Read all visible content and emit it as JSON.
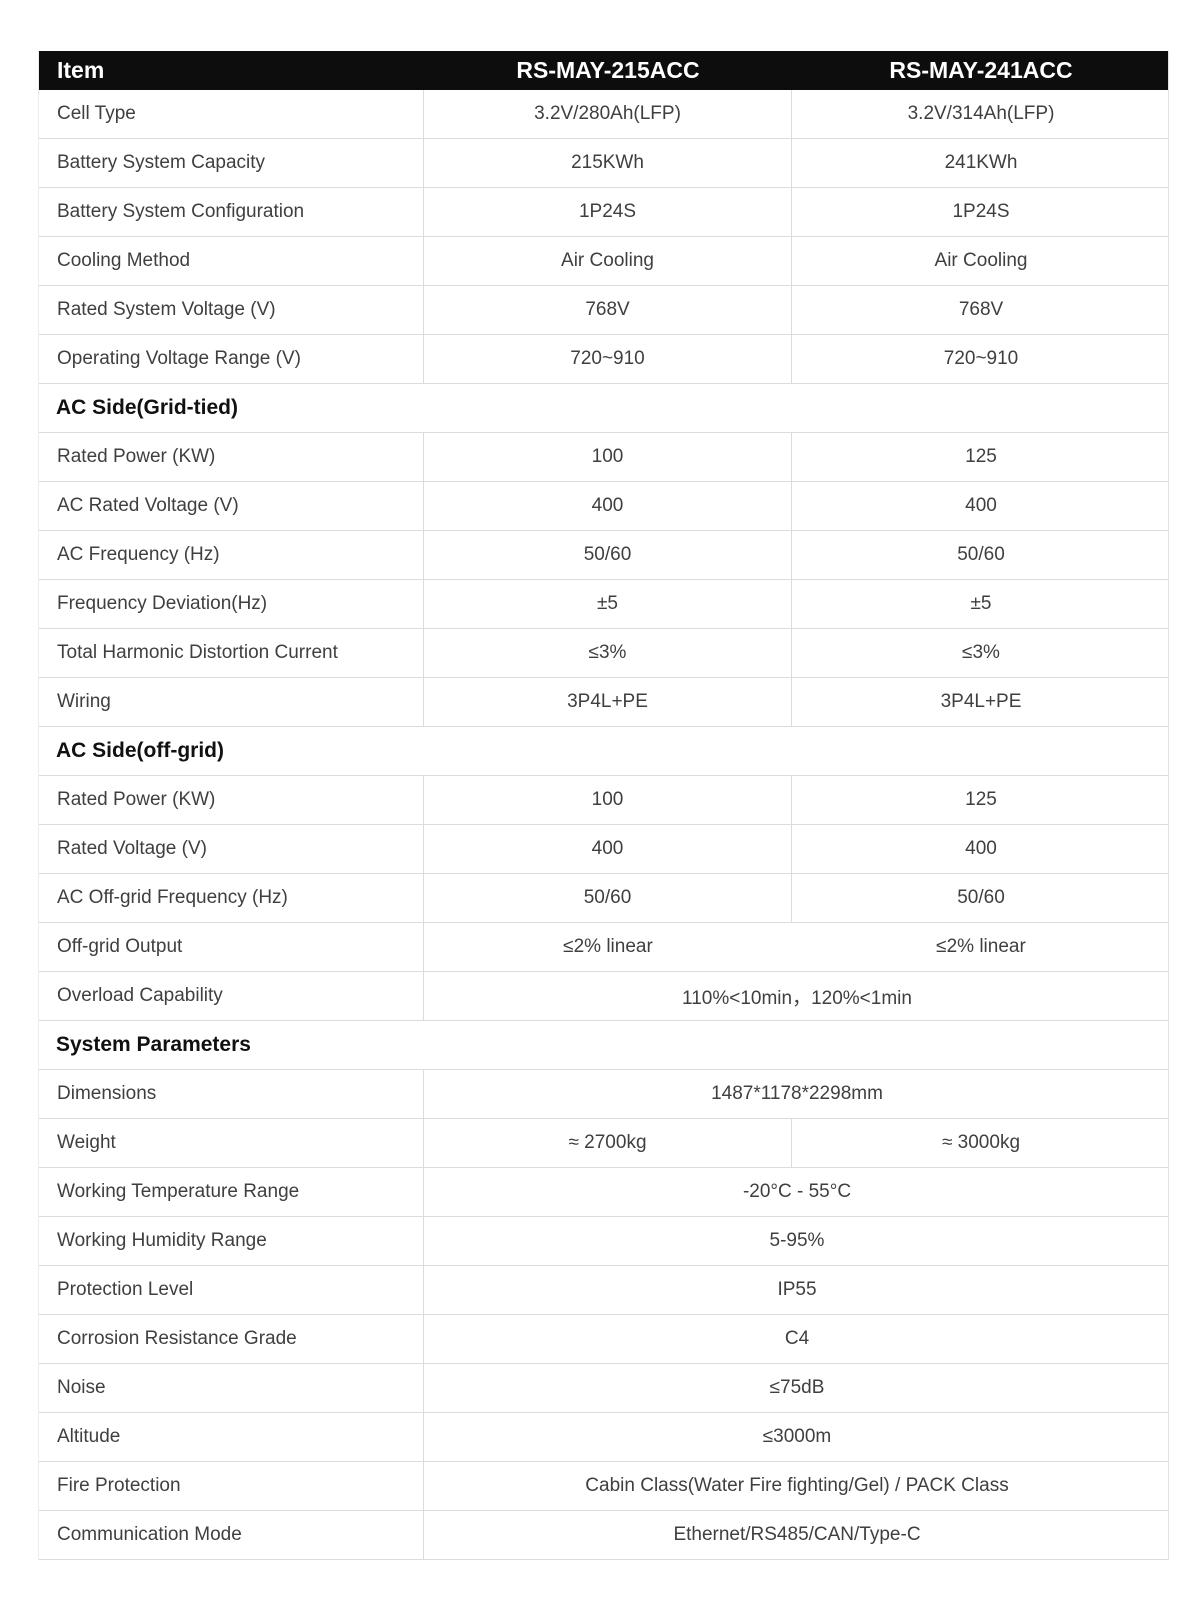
{
  "colors": {
    "header_bg": "#0d0d0d",
    "header_text": "#ffffff",
    "body_text": "#3f3f3f",
    "border": "#dcdcdc"
  },
  "header": {
    "item_label": "Item",
    "model_1": "RS-MAY-215ACC",
    "model_2": "RS-MAY-241ACC"
  },
  "sections": [
    {
      "title": "",
      "rows": [
        {
          "label": "Cell Type",
          "values": [
            "3.2V/280Ah(LFP)",
            "3.2V/314Ah(LFP)"
          ]
        },
        {
          "label": "Battery System Capacity",
          "values": [
            "215KWh",
            "241KWh"
          ]
        },
        {
          "label": "Battery System Configuration",
          "values": [
            "1P24S",
            "1P24S"
          ]
        },
        {
          "label": "Cooling Method",
          "values": [
            "Air Cooling",
            "Air Cooling"
          ]
        },
        {
          "label": "Rated System Voltage (V)",
          "values": [
            "768V",
            "768V"
          ]
        },
        {
          "label": "Operating Voltage Range (V)",
          "values": [
            "720~910",
            "720~910"
          ]
        }
      ]
    },
    {
      "title": "AC Side(Grid-tied)",
      "rows": [
        {
          "label": "Rated Power (KW)",
          "values": [
            "100",
            "125"
          ]
        },
        {
          "label": "AC Rated Voltage (V)",
          "values": [
            "400",
            "400"
          ]
        },
        {
          "label": "AC Frequency (Hz)",
          "values": [
            "50/60",
            "50/60"
          ]
        },
        {
          "label": "Frequency Deviation(Hz)",
          "values": [
            "±5",
            "±5"
          ]
        },
        {
          "label": "Total Harmonic Distortion Current",
          "values": [
            "≤3%",
            "≤3%"
          ]
        },
        {
          "label": "Wiring",
          "values": [
            "3P4L+PE",
            "3P4L+PE"
          ]
        }
      ]
    },
    {
      "title": "AC Side(off-grid)",
      "rows": [
        {
          "label": "Rated Power (KW)",
          "values": [
            "100",
            "125"
          ]
        },
        {
          "label": "Rated Voltage (V)",
          "values": [
            "400",
            "400"
          ]
        },
        {
          "label": "AC Off-grid Frequency (Hz)",
          "values": [
            "50/60",
            "50/60"
          ]
        },
        {
          "label": "Off-grid Output",
          "values": [
            "≤2% linear",
            "≤2% linear"
          ]
        },
        {
          "label": "Overload Capability",
          "values": [
            "110%<10min，120%<1min"
          ]
        }
      ]
    },
    {
      "title": "System Parameters",
      "rows": [
        {
          "label": "Dimensions",
          "values": [
            "1487*1178*2298mm"
          ]
        },
        {
          "label": "Weight",
          "values": [
            "≈ 2700kg",
            "≈ 3000kg"
          ]
        },
        {
          "label": "Working Temperature Range",
          "values": [
            "-20°C - 55°C"
          ]
        },
        {
          "label": "Working Humidity Range",
          "values": [
            "5-95%"
          ]
        },
        {
          "label": "Protection Level",
          "values": [
            "IP55"
          ]
        },
        {
          "label": "Corrosion Resistance Grade",
          "values": [
            "C4"
          ]
        },
        {
          "label": "Noise",
          "values": [
            "≤75dB"
          ]
        },
        {
          "label": "Altitude",
          "values": [
            "≤3000m"
          ]
        },
        {
          "label": "Fire Protection",
          "values": [
            "Cabin Class(Water Fire fighting/Gel) / PACK Class"
          ]
        },
        {
          "label": "Communication Mode",
          "values": [
            "Ethernet/RS485/CAN/Type-C"
          ]
        }
      ]
    }
  ]
}
